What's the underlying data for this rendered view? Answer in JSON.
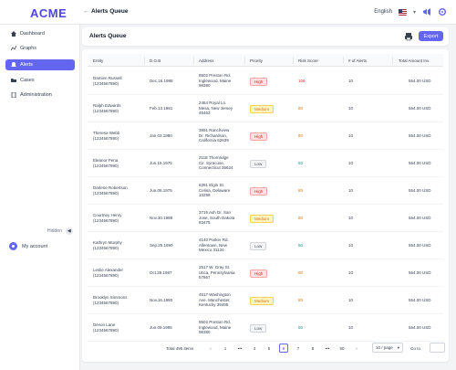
{
  "app": {
    "brand": "ACME"
  },
  "topbar": {
    "back": "←",
    "title": "Alerts Queue",
    "language": "English"
  },
  "sidebar": {
    "items": [
      {
        "label": "Dashboard",
        "icon": "home-icon",
        "active": false
      },
      {
        "label": "Graphs",
        "icon": "graph-icon",
        "active": false
      },
      {
        "label": "Alerts",
        "icon": "alert-icon",
        "active": true
      },
      {
        "label": "Cases",
        "icon": "folder-icon",
        "active": false
      },
      {
        "label": "Administration",
        "icon": "document-icon",
        "active": false
      }
    ],
    "collapse_label": "Hidden",
    "account_label": "My account"
  },
  "header": {
    "title": "Alerts Queue",
    "export_label": "Export"
  },
  "table": {
    "columns": [
      "Entity",
      "D.O.B",
      "Address",
      "Priority",
      "Risk Score",
      "# of Alerts",
      "Total Amount Inv."
    ],
    "rows": [
      {
        "name": "Damien Russell",
        "id": "(1234567890)",
        "dob": "Dec.16.1988",
        "addr": [
          "8502 Preston Rd.",
          "Inglewood, Maine",
          "98380"
        ],
        "priority": "High",
        "score": "106",
        "alerts": "10",
        "amount": "554.00 USD"
      },
      {
        "name": "Ralph Edwards",
        "id": "(1234567890)",
        "dob": "Feb.13.1981",
        "addr": [
          "2464 Royal Ln.",
          "Mesa, New Jersey",
          "45463"
        ],
        "priority": "Medium",
        "score": "80",
        "alerts": "10",
        "amount": "554.00 USD"
      },
      {
        "name": "Theresa Webb",
        "id": "(1234567890)",
        "dob": "Jan.03.1980",
        "addr": [
          "3891 Ranchview",
          "Dr. Richardson,",
          "California 62639"
        ],
        "priority": "High",
        "score": "80",
        "alerts": "10",
        "amount": "554.00 USD"
      },
      {
        "name": "Eleanor Pena",
        "id": "(1234567890)",
        "dob": "Jun.15.1975",
        "addr": [
          "2118 Thornridge",
          "Cir. Syracuse,",
          "Connecticut 35624"
        ],
        "priority": "Low",
        "score": "50",
        "alerts": "10",
        "amount": "554.00 USD"
      },
      {
        "name": "Darlene Robertson",
        "id": "(1234567890)",
        "dob": "Jun.08.1975",
        "addr": [
          "6391 Elgin St.",
          "Celina, Delaware",
          "10299"
        ],
        "priority": "High",
        "score": "80",
        "alerts": "10",
        "amount": "554.00 USD"
      },
      {
        "name": "Courtney Henry",
        "id": "(1234567890)",
        "dob": "Nov.30.1988",
        "addr": [
          "3715 Ash Dr. San",
          "Jose, South Dakota",
          "83475"
        ],
        "priority": "Medium",
        "score": "80",
        "alerts": "10",
        "amount": "554.00 USD"
      },
      {
        "name": "Kathryn Murphy",
        "id": "(1234567890)",
        "dob": "Sep.25.1990",
        "addr": [
          "4140 Parker Rd.",
          "Allentown, New",
          "Mexico 31134"
        ],
        "priority": "Low",
        "score": "50",
        "alerts": "10",
        "amount": "554.00 USD"
      },
      {
        "name": "Leslie Alexander",
        "id": "(1234567890)",
        "dob": "Oct.28.1987",
        "addr": [
          "2517 W. Gray St.",
          "Utica, Pennsylvania",
          "57867"
        ],
        "priority": "High",
        "score": "80",
        "alerts": "10",
        "amount": "554.00 USD"
      },
      {
        "name": "Brooklyn Simmons",
        "id": "(1234567890)",
        "dob": "Nov.16.1980",
        "addr": [
          "4517 Washington",
          "Ave. Manchester,",
          "Kentucky 39495"
        ],
        "priority": "Medium",
        "score": "80",
        "alerts": "10",
        "amount": "554.00 USD"
      },
      {
        "name": "Devon Lane",
        "id": "(1234567890)",
        "dob": "Jun.09.1995",
        "addr": [
          "8502 Preston Rd.",
          "Inglewood, Maine",
          "98380"
        ],
        "priority": "Low",
        "score": "50",
        "alerts": "10",
        "amount": "554.00 USD"
      }
    ]
  },
  "pagination": {
    "total": "Total 495 items",
    "prev": "‹",
    "next": "›",
    "pages": [
      "1",
      "•••",
      "4",
      "5",
      "6",
      "7",
      "8",
      "•••",
      "50"
    ],
    "current": "6",
    "page_size": "10 / page",
    "goto_label": "Go to"
  },
  "colors": {
    "accent": "#6366f1",
    "high": "#dc2626",
    "medium": "#d97706",
    "low": "#4b5563"
  }
}
